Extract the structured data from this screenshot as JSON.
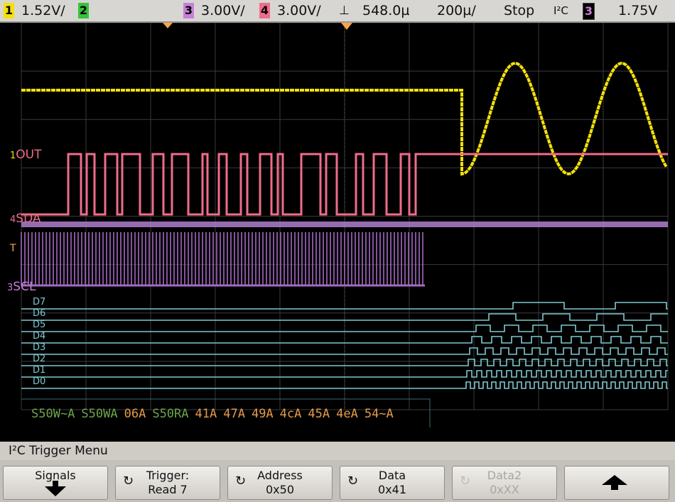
{
  "status": {
    "ch1_num": "1",
    "ch1_scale": "1.52V/",
    "ch2_num": "2",
    "ch3_num": "3",
    "ch3_scale": "3.00V/",
    "ch4_num": "4",
    "ch4_scale": "3.00V/",
    "delay": "548.0µ",
    "timebase": "200µ/",
    "run_state": "Stop",
    "trigger_mode": "I²C",
    "trigger_source": "3",
    "trigger_level": "1.75V",
    "colors": {
      "ch1": "#f4e10a",
      "ch2": "#37c23b",
      "ch3": "#c77fd8",
      "ch4": "#f06c8a",
      "digital": "#7fc8cf"
    }
  },
  "signals": {
    "out_label": "OUT",
    "sda_label": "SDA",
    "scl_label": "SCL",
    "out_marker": "1",
    "sda_marker": "4",
    "scl_marker": "3",
    "trigger_marker": "T",
    "digital": [
      "D7",
      "D6",
      "D5",
      "D4",
      "D3",
      "D2",
      "D1",
      "D0"
    ]
  },
  "decode": [
    {
      "text": "S50W~A",
      "color": "#6ca54a"
    },
    {
      "text": "S50WA",
      "color": "#6ca54a"
    },
    {
      "text": "06A",
      "color": "#e49a4a"
    },
    {
      "text": "S50RA",
      "color": "#6ca54a"
    },
    {
      "text": "41A",
      "color": "#e49a4a"
    },
    {
      "text": "47A",
      "color": "#e49a4a"
    },
    {
      "text": "49A",
      "color": "#e49a4a"
    },
    {
      "text": "4cA",
      "color": "#e49a4a"
    },
    {
      "text": "45A",
      "color": "#e49a4a"
    },
    {
      "text": "4eA",
      "color": "#e49a4a"
    },
    {
      "text": "54~A",
      "color": "#e49a4a"
    }
  ],
  "menu": {
    "title": "I²C Trigger Menu",
    "softkeys": [
      {
        "label": "Signals",
        "value": "",
        "enabled": true,
        "icon": "arrow-down"
      },
      {
        "label": "Trigger:",
        "value": "Read 7",
        "enabled": true,
        "icon": "rotary-knob"
      },
      {
        "label": "Address",
        "value": "0x50",
        "enabled": true,
        "icon": "rotary-knob"
      },
      {
        "label": "Data",
        "value": "0x41",
        "enabled": true,
        "icon": "rotary-knob"
      },
      {
        "label": "Data2",
        "value": "0xXX",
        "enabled": false,
        "icon": "rotary-knob"
      },
      {
        "label": "",
        "value": "",
        "enabled": true,
        "icon": "arrow-up"
      }
    ]
  }
}
